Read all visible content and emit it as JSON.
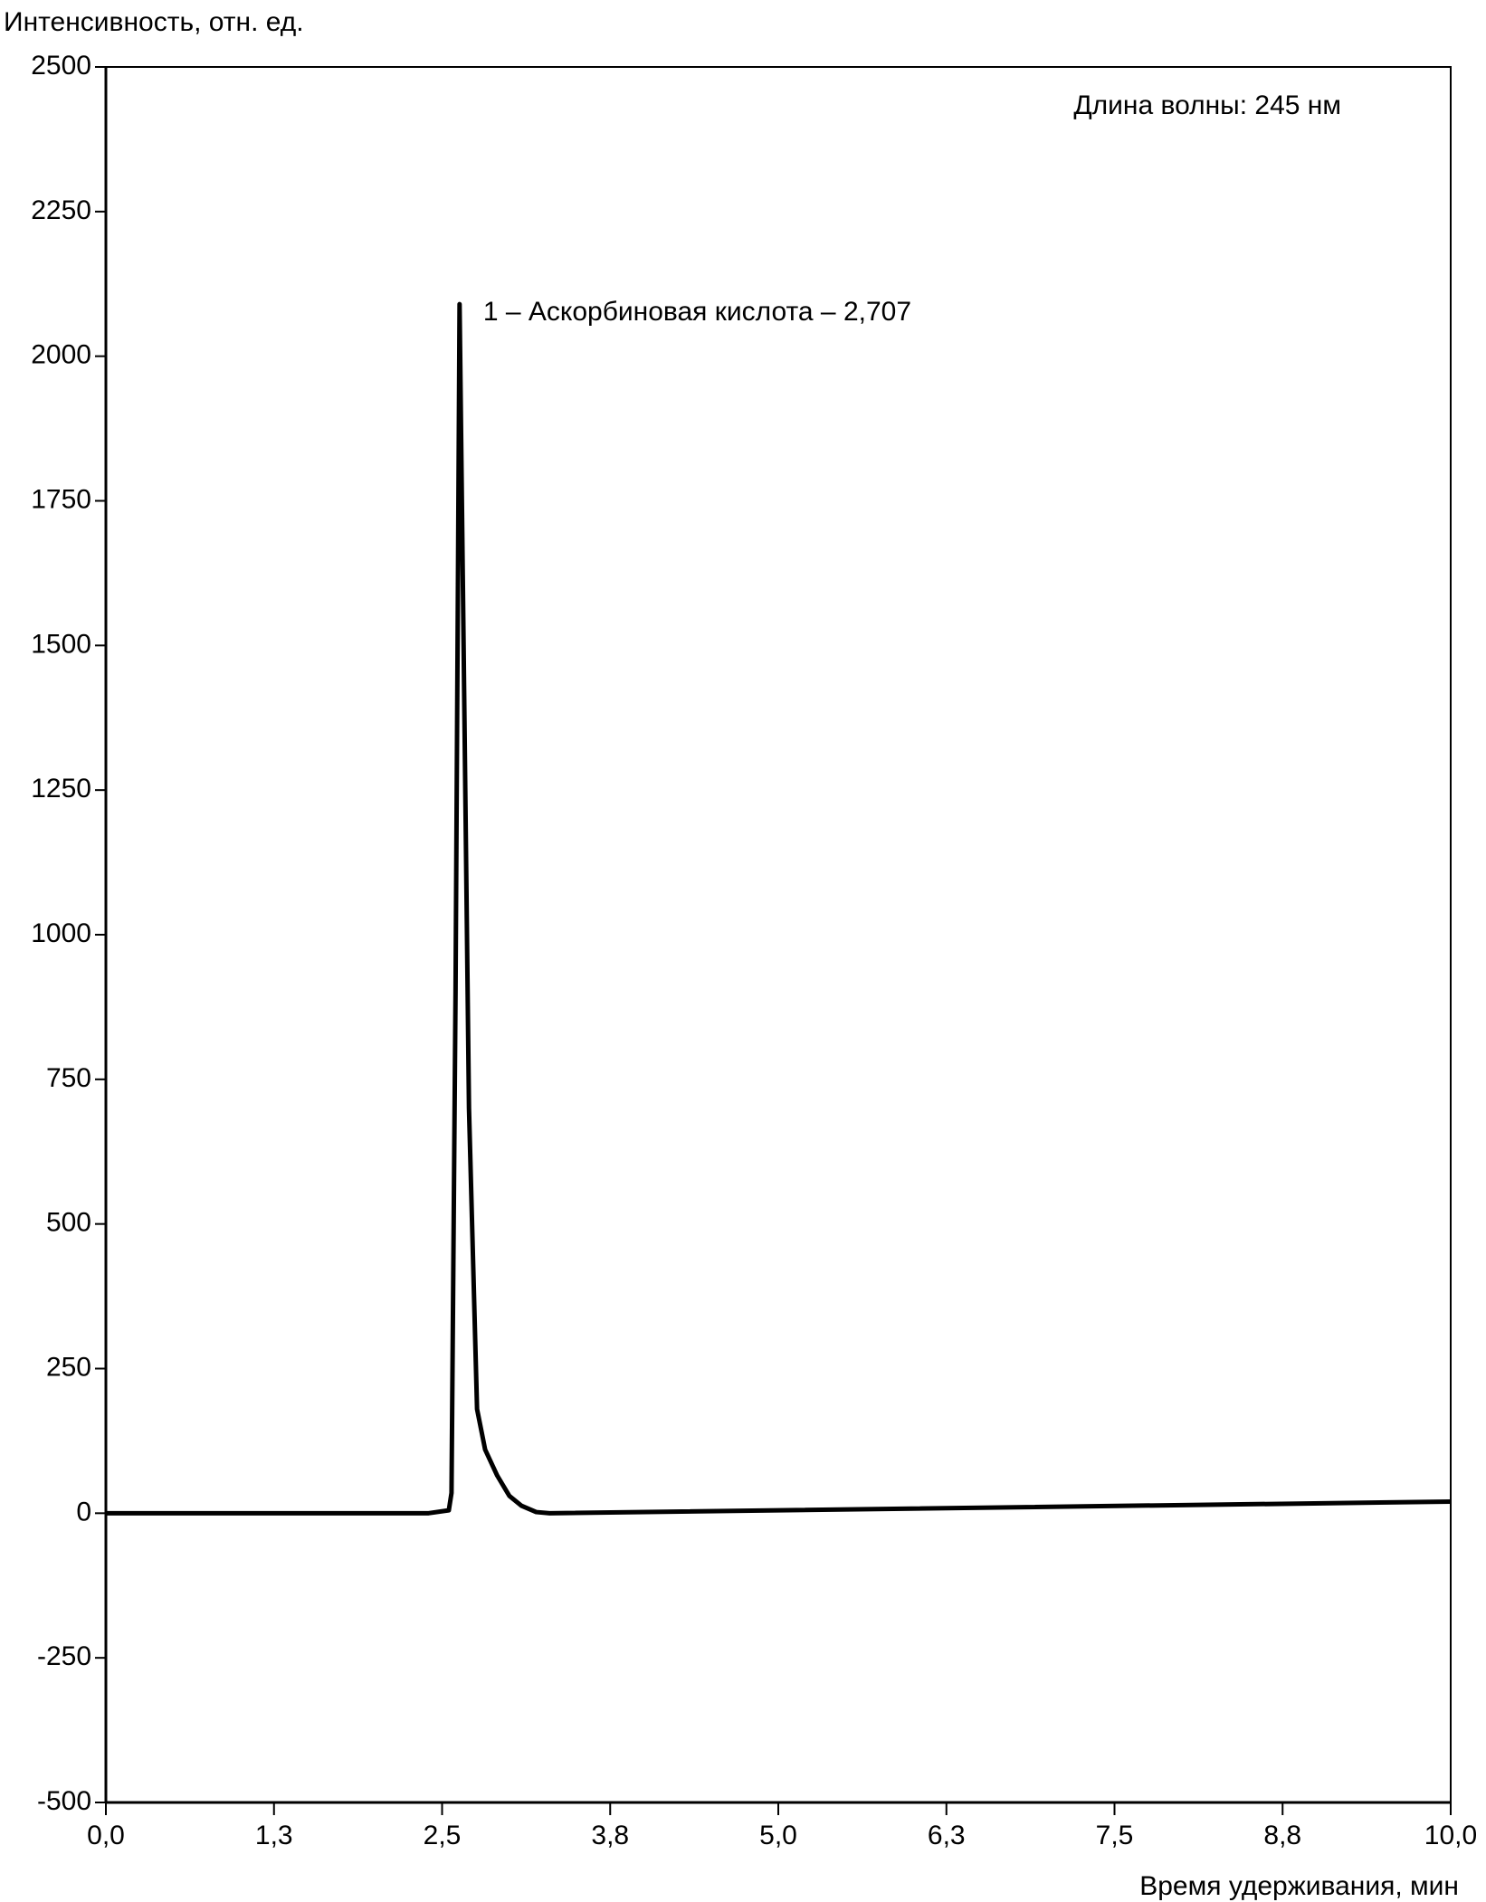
{
  "chart_data": {
    "type": "line",
    "y_label": "Интенсивность, отн. ед.",
    "x_label": "Время удерживания, мин",
    "annotations": [
      "Длина волны: 245 нм",
      "1 – Аскорбиновая кислота – 2,707"
    ],
    "x": [
      0,
      2.4,
      2.55,
      2.57,
      2.6,
      2.63,
      2.66,
      2.7,
      2.76,
      2.82,
      2.91,
      3.0,
      3.09,
      3.2,
      3.3,
      10
    ],
    "series": [
      {
        "name": "245 нм",
        "color": "#000000",
        "values": [
          0,
          0,
          5,
          35,
          900,
          2090,
          1500,
          700,
          180,
          110,
          65,
          30,
          13,
          2,
          0,
          20
        ]
      }
    ],
    "xlim": [
      0,
      10
    ],
    "xticks": [
      {
        "value": 0,
        "label": "0,0"
      },
      {
        "value": 1.25,
        "label": "1,3"
      },
      {
        "value": 2.5,
        "label": "2,5"
      },
      {
        "value": 3.75,
        "label": "3,8"
      },
      {
        "value": 5,
        "label": "5,0"
      },
      {
        "value": 6.25,
        "label": "6,3"
      },
      {
        "value": 7.5,
        "label": "7,5"
      },
      {
        "value": 8.75,
        "label": "8,8"
      },
      {
        "value": 10,
        "label": "10,0"
      }
    ],
    "ylim": [
      -500,
      2500
    ],
    "yticks": [
      -500,
      -250,
      0,
      250,
      500,
      750,
      1000,
      1250,
      1500,
      1750,
      2000,
      2250,
      2500
    ],
    "grid": false
  }
}
